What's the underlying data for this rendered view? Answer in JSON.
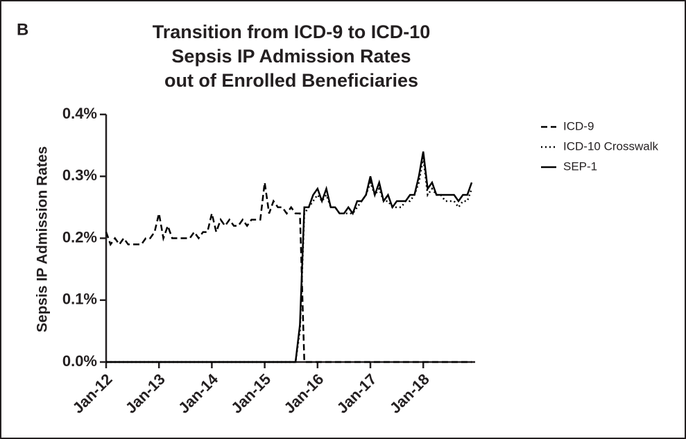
{
  "chart_data": {
    "type": "line",
    "panel_label": "B",
    "title": [
      "Transition from ICD-9 to ICD-10",
      "Sepsis IP Admission Rates",
      "out of Enrolled Beneficiaries"
    ],
    "y_label": "Sepsis IP Admission Rates",
    "categories": [
      "Jan-12",
      null,
      null,
      null,
      null,
      null,
      null,
      null,
      null,
      null,
      null,
      null,
      "Jan-13",
      null,
      null,
      null,
      null,
      null,
      null,
      null,
      null,
      null,
      null,
      null,
      "Jan-14",
      null,
      null,
      null,
      null,
      null,
      null,
      null,
      null,
      null,
      null,
      null,
      "Jan-15",
      null,
      null,
      null,
      null,
      null,
      null,
      null,
      null,
      null,
      null,
      null,
      "Jan-16",
      null,
      null,
      null,
      null,
      null,
      null,
      null,
      null,
      null,
      null,
      null,
      "Jan-17",
      null,
      null,
      null,
      null,
      null,
      null,
      null,
      null,
      null,
      null,
      null,
      "Jan-18",
      null,
      null,
      null,
      null,
      null,
      null,
      null,
      null,
      null,
      null,
      null
    ],
    "series": [
      {
        "name": "ICD-9",
        "color": "#000000",
        "dash": "dashed",
        "values": [
          0.21,
          0.19,
          0.2,
          0.19,
          0.2,
          0.19,
          0.19,
          0.19,
          0.19,
          0.2,
          0.2,
          0.21,
          0.24,
          0.2,
          0.22,
          0.2,
          0.2,
          0.2,
          0.2,
          0.2,
          0.21,
          0.2,
          0.21,
          0.21,
          0.24,
          0.21,
          0.23,
          0.22,
          0.23,
          0.22,
          0.22,
          0.23,
          0.22,
          0.23,
          0.23,
          0.23,
          0.29,
          0.24,
          0.26,
          0.25,
          0.25,
          0.24,
          0.25,
          0.24,
          0.24,
          0,
          0,
          0,
          0,
          0,
          0,
          0,
          0,
          0,
          0,
          0,
          0,
          0,
          0,
          0,
          0,
          0,
          0,
          0,
          0,
          0,
          0,
          0,
          0,
          0,
          0,
          0,
          0,
          0,
          0,
          0,
          0,
          0,
          0,
          0,
          0,
          0,
          0,
          0
        ]
      },
      {
        "name": "ICD-10 Crosswalk",
        "color": "#000000",
        "dash": "dotted",
        "values": [
          0,
          0,
          0,
          0,
          0,
          0,
          0,
          0,
          0,
          0,
          0,
          0,
          0,
          0,
          0,
          0,
          0,
          0,
          0,
          0,
          0,
          0,
          0,
          0,
          0,
          0,
          0,
          0,
          0,
          0,
          0,
          0,
          0,
          0,
          0,
          0,
          0,
          0,
          0,
          0,
          0,
          0,
          0,
          0,
          0.05,
          0.24,
          0.25,
          0.26,
          0.27,
          0.26,
          0.27,
          0.25,
          0.25,
          0.24,
          0.24,
          0.24,
          0.24,
          0.25,
          0.26,
          0.27,
          0.29,
          0.27,
          0.28,
          0.26,
          0.26,
          0.25,
          0.25,
          0.25,
          0.26,
          0.26,
          0.27,
          0.29,
          0.33,
          0.27,
          0.28,
          0.27,
          0.27,
          0.26,
          0.26,
          0.26,
          0.25,
          0.26,
          0.26,
          0.28
        ]
      },
      {
        "name": "SEP-1",
        "color": "#000000",
        "dash": "solid",
        "values": [
          0,
          0,
          0,
          0,
          0,
          0,
          0,
          0,
          0,
          0,
          0,
          0,
          0,
          0,
          0,
          0,
          0,
          0,
          0,
          0,
          0,
          0,
          0,
          0,
          0,
          0,
          0,
          0,
          0,
          0,
          0,
          0,
          0,
          0,
          0,
          0,
          0,
          0,
          0,
          0,
          0,
          0,
          0,
          0,
          0.06,
          0.25,
          0.25,
          0.27,
          0.28,
          0.26,
          0.28,
          0.25,
          0.25,
          0.24,
          0.24,
          0.25,
          0.24,
          0.26,
          0.26,
          0.27,
          0.3,
          0.27,
          0.29,
          0.26,
          0.27,
          0.25,
          0.26,
          0.26,
          0.26,
          0.27,
          0.27,
          0.3,
          0.34,
          0.28,
          0.29,
          0.27,
          0.27,
          0.27,
          0.27,
          0.27,
          0.26,
          0.27,
          0.27,
          0.29
        ]
      }
    ],
    "ylim": [
      0,
      0.4
    ],
    "yticks": [
      {
        "value": 0,
        "label": "0.0%"
      },
      {
        "value": 0.1,
        "label": "0.1%"
      },
      {
        "value": 0.2,
        "label": "0.2%"
      },
      {
        "value": 0.3,
        "label": "0.3%"
      },
      {
        "value": 0.4,
        "label": "0.4%"
      }
    ],
    "legend": "top-right"
  }
}
